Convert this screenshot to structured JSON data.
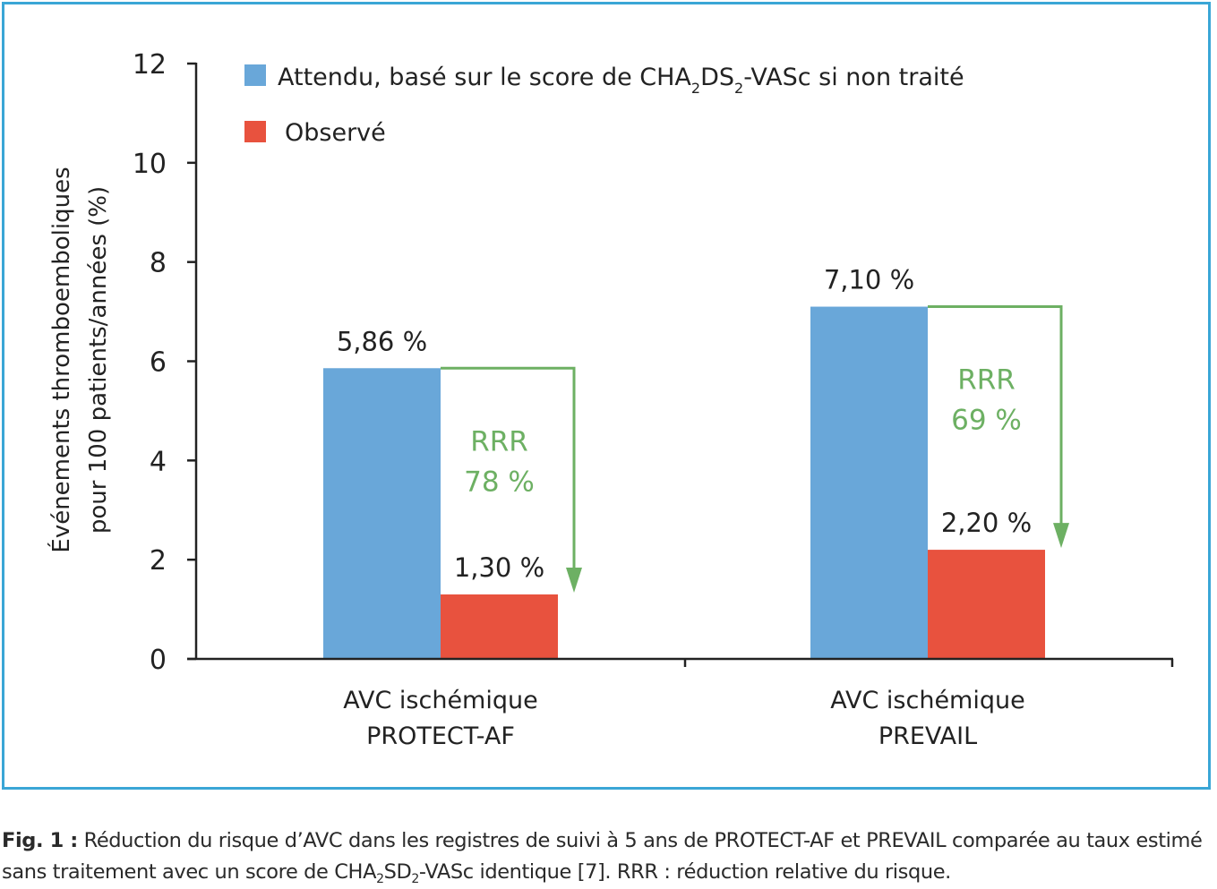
{
  "chart_data": {
    "type": "bar",
    "categories": [
      [
        "AVC ischémique",
        "PROTECT-AF"
      ],
      [
        "AVC ischémique",
        "PREVAIL"
      ]
    ],
    "series": [
      {
        "name": "Attendu, basé sur le score de CHA2DS2-VASc si non traité",
        "values": [
          5.86,
          7.1
        ],
        "color": "#69a7d9",
        "labels": [
          "5,86 %",
          "7,10 %"
        ]
      },
      {
        "name": "Observé",
        "values": [
          1.3,
          2.2
        ],
        "color": "#e8523e",
        "labels": [
          "1,30 %",
          "2,20 %"
        ]
      }
    ],
    "ylabel_lines": [
      "Événements thromboemboliques",
      "pour 100 patients/années (%)"
    ],
    "ylim": [
      0,
      12
    ],
    "yticks": [
      0,
      2,
      4,
      6,
      8,
      10,
      12
    ],
    "legend_position": "top-left",
    "annotations": [
      {
        "category": 0,
        "lines": [
          "RRR",
          "78 %"
        ],
        "color": "#6db063"
      },
      {
        "category": 1,
        "lines": [
          "RRR",
          "69 %"
        ],
        "color": "#6db063"
      }
    ]
  },
  "legend": {
    "expected_parts": {
      "pre": "Attendu, basé sur le score de CHA",
      "sub1": "2",
      "mid1": "DS",
      "sub2": "2",
      "post": "-VASc si non traité"
    },
    "observed": "Observé"
  },
  "caption": {
    "label": "Fig. 1 :",
    "text_pre": " Réduction du risque d’AVC dans les registres de suivi à 5 ans de PROTECT-AF et PREVAIL comparée au taux estimé sans traitement avec un score de CHA",
    "sub1": "2",
    "text_mid": "SD",
    "sub2": "2",
    "text_post": "-VASc identique [7]. RRR : réduction relative du risque."
  }
}
